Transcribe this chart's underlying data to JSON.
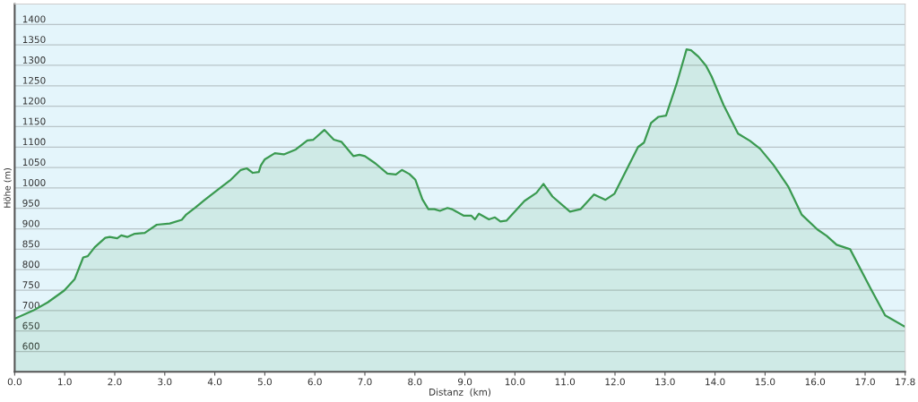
{
  "chart_data": {
    "type": "area",
    "xlabel": "Distanz  (km)",
    "ylabel": "Höhe (m)",
    "xlim": [
      0,
      17.8
    ],
    "ylim": [
      550,
      1450
    ],
    "xticks": [
      {
        "value": 0,
        "label": "0.0"
      },
      {
        "value": 1,
        "label": "1.0"
      },
      {
        "value": 2,
        "label": "2.0"
      },
      {
        "value": 3,
        "label": "3.0"
      },
      {
        "value": 4,
        "label": "4.0"
      },
      {
        "value": 5,
        "label": "5.0"
      },
      {
        "value": 6,
        "label": "6.0"
      },
      {
        "value": 7,
        "label": "7.0"
      },
      {
        "value": 8,
        "label": "8.0"
      },
      {
        "value": 9,
        "label": "9.0"
      },
      {
        "value": 10,
        "label": "10.0"
      },
      {
        "value": 11,
        "label": "11.0"
      },
      {
        "value": 12,
        "label": "12.0"
      },
      {
        "value": 13,
        "label": "13.0"
      },
      {
        "value": 14,
        "label": "14.0"
      },
      {
        "value": 15,
        "label": "15.0"
      },
      {
        "value": 16,
        "label": "16.0"
      },
      {
        "value": 17,
        "label": "17.0"
      },
      {
        "value": 17.8,
        "label": "17.8"
      }
    ],
    "yticks": [
      600,
      650,
      700,
      750,
      800,
      850,
      900,
      950,
      1000,
      1050,
      1100,
      1150,
      1200,
      1250,
      1300,
      1350,
      1400
    ],
    "grid": "y",
    "legend": false,
    "marker": "none",
    "line_style": "solid",
    "series": [
      {
        "color": "#3a9a50",
        "x": [
          0,
          0.37,
          0.66,
          0.99,
          1.2,
          1.37,
          1.46,
          1.6,
          1.81,
          1.9,
          2.05,
          2.13,
          2.25,
          2.4,
          2.6,
          2.84,
          3.1,
          3.34,
          3.43,
          3.61,
          3.79,
          4.02,
          4.32,
          4.52,
          4.64,
          4.76,
          4.88,
          4.92,
          5.0,
          5.2,
          5.38,
          5.62,
          5.85,
          5.97,
          6.19,
          6.38,
          6.53,
          6.77,
          6.89,
          7.0,
          7.21,
          7.45,
          7.62,
          7.74,
          7.89,
          8.01,
          8.15,
          8.27,
          8.39,
          8.5,
          8.65,
          8.74,
          8.98,
          9.13,
          9.2,
          9.28,
          9.48,
          9.6,
          9.71,
          9.83,
          10.19,
          10.43,
          10.57,
          10.75,
          11.1,
          11.31,
          11.58,
          11.81,
          11.99,
          12.25,
          12.46,
          12.58,
          12.72,
          12.87,
          13.02,
          13.23,
          13.43,
          13.52,
          13.67,
          13.82,
          13.93,
          14.17,
          14.46,
          14.7,
          14.9,
          15.17,
          15.46,
          15.73,
          16.05,
          16.23,
          16.43,
          16.7,
          17.11,
          17.4,
          17.8
        ],
        "values": [
          680,
          700,
          720,
          749,
          777,
          830,
          833,
          855,
          878,
          880,
          877,
          884,
          880,
          888,
          890,
          910,
          913,
          922,
          935,
          952,
          970,
          992,
          1020,
          1044,
          1048,
          1037,
          1039,
          1055,
          1070,
          1085,
          1082,
          1094,
          1116,
          1118,
          1142,
          1118,
          1113,
          1078,
          1081,
          1078,
          1060,
          1035,
          1033,
          1044,
          1034,
          1020,
          972,
          948,
          948,
          944,
          951,
          948,
          932,
          932,
          923,
          937,
          923,
          928,
          918,
          920,
          968,
          988,
          1010,
          979,
          942,
          948,
          984,
          971,
          986,
          1049,
          1100,
          1111,
          1159,
          1174,
          1177,
          1254,
          1339,
          1337,
          1321,
          1299,
          1273,
          1203,
          1133,
          1115,
          1096,
          1056,
          1004,
          935,
          898,
          883,
          861,
          850,
          754,
          688,
          660
        ]
      }
    ]
  }
}
